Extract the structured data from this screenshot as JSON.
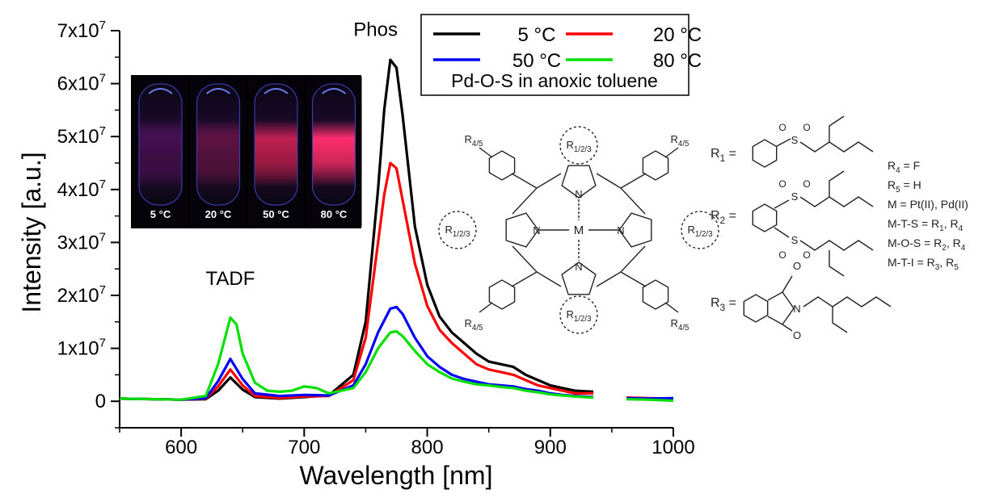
{
  "chart_data": {
    "type": "line",
    "xlabel": "Wavelength [nm]",
    "ylabel": "Intensity [a.u.]",
    "xlim": [
      550,
      1000
    ],
    "ylim": [
      -5000000,
      70000000
    ],
    "x_ticks": [
      600,
      700,
      800,
      900,
      1000
    ],
    "y_ticks": [
      {
        "value": 0,
        "mant": "0",
        "exp": ""
      },
      {
        "value": 10000000,
        "mant": "1x10",
        "exp": "7"
      },
      {
        "value": 20000000,
        "mant": "2x10",
        "exp": "7"
      },
      {
        "value": 30000000,
        "mant": "3x10",
        "exp": "7"
      },
      {
        "value": 40000000,
        "mant": "4x10",
        "exp": "7"
      },
      {
        "value": 50000000,
        "mant": "5x10",
        "exp": "7"
      },
      {
        "value": 60000000,
        "mant": "6x10",
        "exp": "7"
      },
      {
        "value": 70000000,
        "mant": "7x10",
        "exp": "7"
      }
    ],
    "grid": false,
    "legend_position": "top-right",
    "legend_note": "Pd-O-S in anoxic toluene",
    "annotations": [
      {
        "text": "Phos",
        "x": 758,
        "y": 69000000
      },
      {
        "text": "TADF",
        "x": 640,
        "y": 22000000
      }
    ],
    "series": [
      {
        "name": "5 °C",
        "color": "#000000",
        "points": [
          [
            550,
            500000
          ],
          [
            600,
            300000
          ],
          [
            620,
            400000
          ],
          [
            630,
            2000000
          ],
          [
            640,
            4500000
          ],
          [
            650,
            2200000
          ],
          [
            660,
            800000
          ],
          [
            680,
            500000
          ],
          [
            700,
            800000
          ],
          [
            720,
            1100000
          ],
          [
            740,
            5000000
          ],
          [
            750,
            15000000
          ],
          [
            760,
            40000000
          ],
          [
            765,
            55000000
          ],
          [
            770,
            64500000
          ],
          [
            775,
            63000000
          ],
          [
            780,
            54000000
          ],
          [
            790,
            33000000
          ],
          [
            800,
            22000000
          ],
          [
            810,
            16000000
          ],
          [
            820,
            13000000
          ],
          [
            830,
            11000000
          ],
          [
            840,
            9000000
          ],
          [
            850,
            7500000
          ],
          [
            860,
            7000000
          ],
          [
            870,
            6500000
          ],
          [
            880,
            5000000
          ],
          [
            890,
            4000000
          ],
          [
            900,
            3000000
          ],
          [
            910,
            2500000
          ],
          [
            920,
            2000000
          ],
          [
            935,
            1800000
          ]
        ],
        "points2": [
          [
            962,
            500000
          ],
          [
            980,
            500000
          ],
          [
            1000,
            400000
          ]
        ]
      },
      {
        "name": "20 °C",
        "color": "#ff0000",
        "points": [
          [
            550,
            500000
          ],
          [
            600,
            300000
          ],
          [
            620,
            500000
          ],
          [
            630,
            2800000
          ],
          [
            640,
            6000000
          ],
          [
            650,
            3000000
          ],
          [
            660,
            1000000
          ],
          [
            680,
            600000
          ],
          [
            700,
            900000
          ],
          [
            720,
            1000000
          ],
          [
            740,
            4000000
          ],
          [
            750,
            12000000
          ],
          [
            760,
            30000000
          ],
          [
            765,
            39000000
          ],
          [
            770,
            45000000
          ],
          [
            775,
            44000000
          ],
          [
            780,
            38000000
          ],
          [
            790,
            26000000
          ],
          [
            800,
            18000000
          ],
          [
            810,
            13500000
          ],
          [
            820,
            11000000
          ],
          [
            830,
            9000000
          ],
          [
            840,
            7000000
          ],
          [
            850,
            6000000
          ],
          [
            860,
            5500000
          ],
          [
            870,
            5000000
          ],
          [
            880,
            4000000
          ],
          [
            890,
            3000000
          ],
          [
            900,
            2500000
          ],
          [
            910,
            2000000
          ],
          [
            920,
            1500000
          ],
          [
            935,
            1500000
          ]
        ],
        "points2": [
          [
            962,
            700000
          ],
          [
            980,
            600000
          ],
          [
            1000,
            500000
          ]
        ]
      },
      {
        "name": "50 °C",
        "color": "#0000ff",
        "points": [
          [
            550,
            500000
          ],
          [
            600,
            300000
          ],
          [
            620,
            600000
          ],
          [
            630,
            3800000
          ],
          [
            640,
            8000000
          ],
          [
            650,
            4200000
          ],
          [
            660,
            1500000
          ],
          [
            680,
            1000000
          ],
          [
            700,
            1200000
          ],
          [
            720,
            1100000
          ],
          [
            740,
            3000000
          ],
          [
            750,
            7000000
          ],
          [
            760,
            13000000
          ],
          [
            770,
            17500000
          ],
          [
            775,
            17800000
          ],
          [
            780,
            16500000
          ],
          [
            790,
            12000000
          ],
          [
            800,
            8500000
          ],
          [
            810,
            6500000
          ],
          [
            820,
            5000000
          ],
          [
            830,
            4200000
          ],
          [
            840,
            3700000
          ],
          [
            850,
            3200000
          ],
          [
            860,
            3000000
          ],
          [
            870,
            2800000
          ],
          [
            880,
            2300000
          ],
          [
            890,
            2000000
          ],
          [
            900,
            1500000
          ],
          [
            910,
            1200000
          ],
          [
            920,
            1000000
          ],
          [
            935,
            800000
          ]
        ],
        "points2": [
          [
            962,
            600000
          ],
          [
            980,
            500000
          ],
          [
            1000,
            600000
          ]
        ]
      },
      {
        "name": "80 °C",
        "color": "#00e000",
        "points": [
          [
            550,
            500000
          ],
          [
            600,
            300000
          ],
          [
            620,
            1000000
          ],
          [
            630,
            7000000
          ],
          [
            640,
            15800000
          ],
          [
            645,
            14500000
          ],
          [
            650,
            9000000
          ],
          [
            660,
            3500000
          ],
          [
            670,
            2000000
          ],
          [
            680,
            1800000
          ],
          [
            690,
            2000000
          ],
          [
            700,
            2800000
          ],
          [
            710,
            2500000
          ],
          [
            720,
            1500000
          ],
          [
            740,
            2500000
          ],
          [
            750,
            5500000
          ],
          [
            760,
            10000000
          ],
          [
            770,
            13000000
          ],
          [
            775,
            13200000
          ],
          [
            780,
            12300000
          ],
          [
            790,
            9500000
          ],
          [
            800,
            7000000
          ],
          [
            810,
            5500000
          ],
          [
            820,
            4300000
          ],
          [
            830,
            3700000
          ],
          [
            840,
            3200000
          ],
          [
            850,
            3000000
          ],
          [
            860,
            2700000
          ],
          [
            870,
            2500000
          ],
          [
            880,
            2000000
          ],
          [
            890,
            1700000
          ],
          [
            900,
            1300000
          ],
          [
            910,
            1100000
          ],
          [
            920,
            900000
          ],
          [
            935,
            700000
          ]
        ],
        "points2": [
          [
            962,
            400000
          ],
          [
            980,
            300000
          ],
          [
            1000,
            100000
          ]
        ]
      }
    ]
  },
  "photo_panel": {
    "labels": [
      "5 °C",
      "20 °C",
      "50 °C",
      "80 °C"
    ],
    "glow_colors": [
      "#7a1a8a",
      "#9a1e6a",
      "#e0245e",
      "#ff2e6e"
    ],
    "glow_strength": [
      0.55,
      0.6,
      0.85,
      1.0
    ]
  },
  "structure": {
    "metal_label": "M",
    "nitrogen_label": "N",
    "substituent_top": "R1/2/3",
    "substituent_top_main": "R",
    "substituent_top_sub": "1/2/3",
    "aryl_main": "R",
    "aryl_sub": "4/5",
    "r_labels": [
      {
        "main": "R",
        "sub": "1",
        "suffix": " ="
      },
      {
        "main": "R",
        "sub": "2",
        "suffix": " ="
      },
      {
        "main": "R",
        "sub": "3",
        "suffix": " ="
      }
    ],
    "sulfonyl_S": "S",
    "oxygen_label": "O",
    "nitrogen_imide": "N",
    "definitions": [
      {
        "text_a": "R",
        "sub_a": "4",
        "text_b": " = F",
        "sub_b": "",
        "text_c": ""
      },
      {
        "text_a": "R",
        "sub_a": "5",
        "text_b": " = H",
        "sub_b": "",
        "text_c": ""
      },
      {
        "text_a": "M = Pt(II), Pd(II)",
        "sub_a": "",
        "text_b": "",
        "sub_b": "",
        "text_c": ""
      },
      {
        "text_a": "M-T-S = R",
        "sub_a": "1",
        "text_b": ", R",
        "sub_b": "4",
        "text_c": ""
      },
      {
        "text_a": "M-O-S = R",
        "sub_a": "2",
        "text_b": ", R",
        "sub_b": "4",
        "text_c": ""
      },
      {
        "text_a": "M-T-I = R",
        "sub_a": "3",
        "text_b": ", R",
        "sub_b": "5",
        "text_c": ""
      }
    ]
  }
}
